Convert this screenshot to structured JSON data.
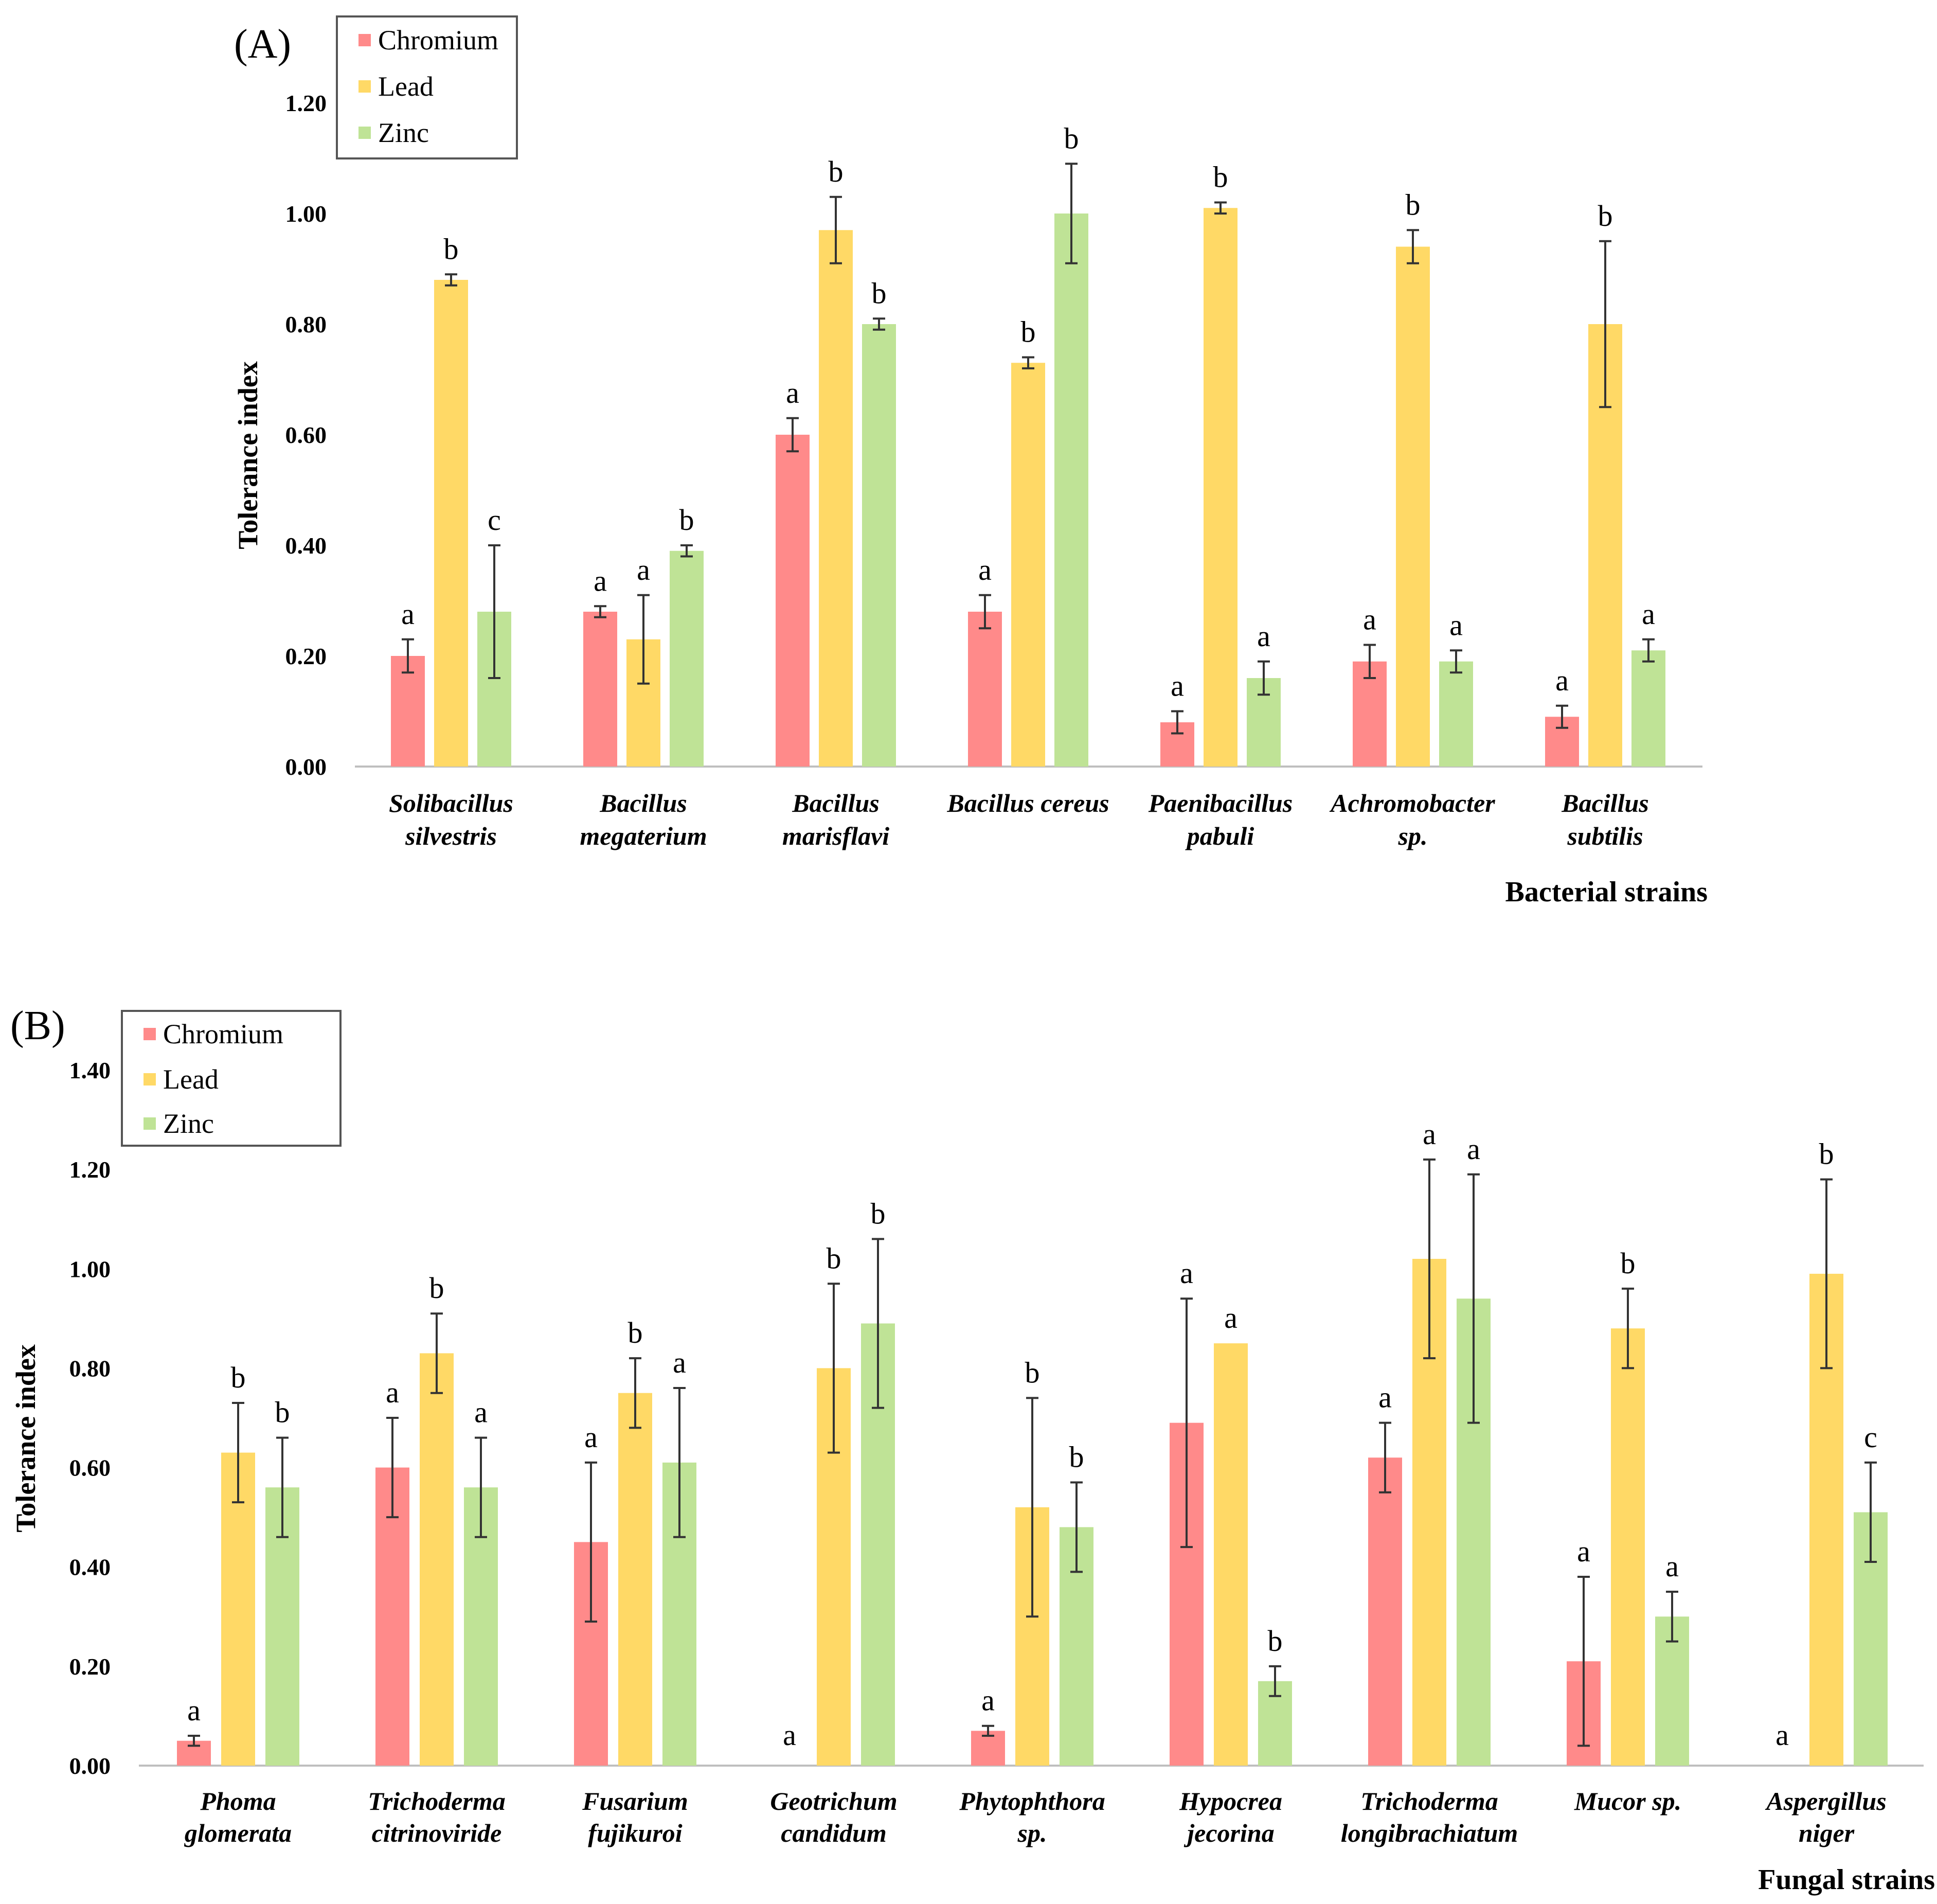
{
  "colors": {
    "Chromium": "#ff8a8a",
    "Lead": "#ffd966",
    "Zinc": "#bfe396",
    "axis": "#bfbfbf",
    "error": "#333333"
  },
  "chart_data": [
    {
      "type": "bar",
      "panel_label": "(A)",
      "title": "",
      "xlabel": "Bacterial strains",
      "ylabel": "Tolerance index",
      "ylim": [
        0,
        1.2
      ],
      "yticks": [
        "0.00",
        "0.20",
        "0.40",
        "0.60",
        "0.80",
        "1.00",
        "1.20"
      ],
      "legend": [
        "Chromium",
        "Lead",
        "Zinc"
      ],
      "legend_position": "top-left",
      "categories": [
        [
          "Solibacillus",
          "silvestris"
        ],
        [
          "Bacillus",
          "megaterium"
        ],
        [
          "Bacillus",
          "marisflavi"
        ],
        [
          "Bacillus cereus"
        ],
        [
          "Paenibacillus",
          "pabuli"
        ],
        [
          "Achromobacter",
          "sp."
        ],
        [
          "Bacillus",
          "subtilis"
        ]
      ],
      "series": [
        {
          "name": "Chromium",
          "values": [
            0.2,
            0.28,
            0.6,
            0.28,
            0.08,
            0.19,
            0.09
          ],
          "errors": [
            0.03,
            0.01,
            0.03,
            0.03,
            0.02,
            0.03,
            0.02
          ],
          "letters": [
            "a",
            "a",
            "a",
            "a",
            "a",
            "a",
            "a"
          ]
        },
        {
          "name": "Lead",
          "values": [
            0.88,
            0.23,
            0.97,
            0.73,
            1.01,
            0.94,
            0.8
          ],
          "errors": [
            0.01,
            0.08,
            0.06,
            0.01,
            0.01,
            0.03,
            0.15
          ],
          "letters": [
            "b",
            "a",
            "b",
            "b",
            "b",
            "b",
            "b"
          ]
        },
        {
          "name": "Zinc",
          "values": [
            0.28,
            0.39,
            0.8,
            1.0,
            0.16,
            0.19,
            0.21
          ],
          "errors": [
            0.12,
            0.01,
            0.01,
            0.09,
            0.03,
            0.02,
            0.02
          ],
          "letters": [
            "c",
            "b",
            "b",
            "b",
            "a",
            "a",
            "a"
          ]
        }
      ]
    },
    {
      "type": "bar",
      "panel_label": "(B)",
      "title": "",
      "xlabel": "Fungal strains",
      "ylabel": "Tolerance index",
      "ylim": [
        0,
        1.4
      ],
      "yticks": [
        "0.00",
        "0.20",
        "0.40",
        "0.60",
        "0.80",
        "1.00",
        "1.20",
        "1.40"
      ],
      "legend": [
        "Chromium",
        "Lead",
        "Zinc"
      ],
      "legend_position": "top-left",
      "categories": [
        [
          "Phoma",
          "glomerata"
        ],
        [
          "Trichoderma",
          "citrinoviride"
        ],
        [
          "Fusarium",
          "fujikuroi"
        ],
        [
          "Geotrichum",
          "candidum"
        ],
        [
          "Phytophthora",
          "sp."
        ],
        [
          "Hypocrea",
          "jecorina"
        ],
        [
          "Trichoderma",
          "longibrachiatum"
        ],
        [
          "Mucor sp."
        ],
        [
          "Aspergillus",
          "niger"
        ]
      ],
      "series": [
        {
          "name": "Chromium",
          "values": [
            0.05,
            0.6,
            0.45,
            0.0,
            0.07,
            0.69,
            0.62,
            0.21,
            0.0
          ],
          "errors": [
            0.01,
            0.1,
            0.16,
            0,
            0.01,
            0.25,
            0.07,
            0.17,
            0
          ],
          "letters": [
            "a",
            "a",
            "a",
            "a",
            "a",
            "a",
            "a",
            "a",
            "a"
          ]
        },
        {
          "name": "Lead",
          "values": [
            0.63,
            0.83,
            0.75,
            0.8,
            0.52,
            0.85,
            1.02,
            0.88,
            0.99
          ],
          "errors": [
            0.1,
            0.08,
            0.07,
            0.17,
            0.22,
            0.0,
            0.2,
            0.08,
            0.19
          ],
          "letters": [
            "b",
            "b",
            "b",
            "b",
            "b",
            "a",
            "a",
            "b",
            "b"
          ]
        },
        {
          "name": "Zinc",
          "values": [
            0.56,
            0.56,
            0.61,
            0.89,
            0.48,
            0.17,
            0.94,
            0.3,
            0.51
          ],
          "errors": [
            0.1,
            0.1,
            0.15,
            0.17,
            0.09,
            0.03,
            0.25,
            0.05,
            0.1
          ],
          "letters": [
            "b",
            "a",
            "a",
            "b",
            "b",
            "b",
            "a",
            "a",
            "c"
          ]
        }
      ]
    }
  ]
}
